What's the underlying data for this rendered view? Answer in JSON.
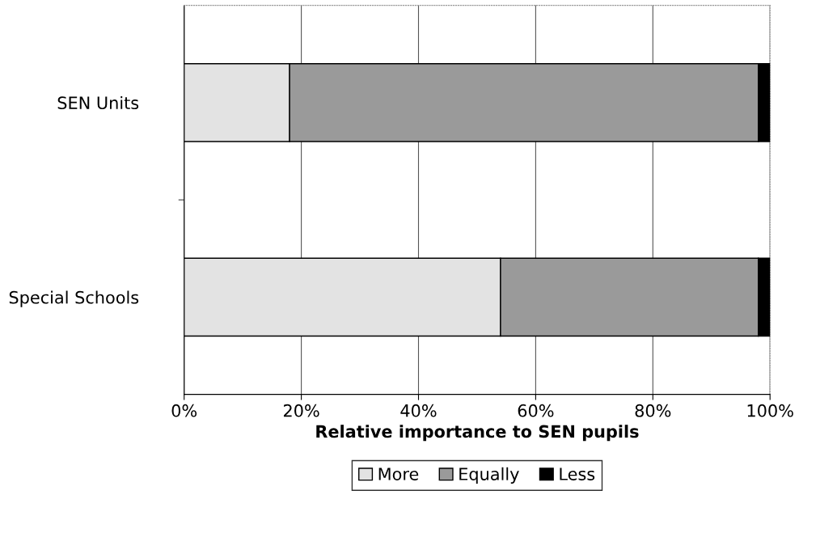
{
  "chart_data": {
    "type": "bar",
    "orientation": "horizontal",
    "stacked": true,
    "xlabel": "Relative importance to SEN pupils",
    "categories": [
      "SEN Units",
      "Special Schools"
    ],
    "series": [
      {
        "name": "More",
        "color": "#e3e3e3",
        "values": [
          18,
          54
        ]
      },
      {
        "name": "Equally",
        "color": "#9a9a9a",
        "values": [
          80,
          44
        ]
      },
      {
        "name": "Less",
        "color": "#000000",
        "values": [
          2,
          2
        ]
      }
    ],
    "xlim": [
      0,
      100
    ],
    "xticks": [
      {
        "value": 0,
        "label": "0%"
      },
      {
        "value": 20,
        "label": "20%"
      },
      {
        "value": 40,
        "label": "40%"
      },
      {
        "value": 60,
        "label": "60%"
      },
      {
        "value": 80,
        "label": "80%"
      },
      {
        "value": 100,
        "label": "100%"
      }
    ],
    "grid": "x",
    "legend": "bottom"
  }
}
